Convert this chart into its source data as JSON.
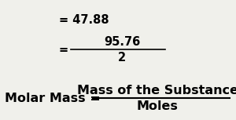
{
  "background_color": "#f0f0eb",
  "line1_left": "Molar Mass = ",
  "line1_numerator": "Mass of the Substance",
  "line1_denominator": "Moles",
  "line2_eq": "= ",
  "line2_numerator": "95.76",
  "line2_denominator": "2",
  "line3": "= 47.88",
  "fs_title": 11.5,
  "fs_body": 10.5,
  "text_color": "#000000",
  "frac_bar_color": "#000000"
}
